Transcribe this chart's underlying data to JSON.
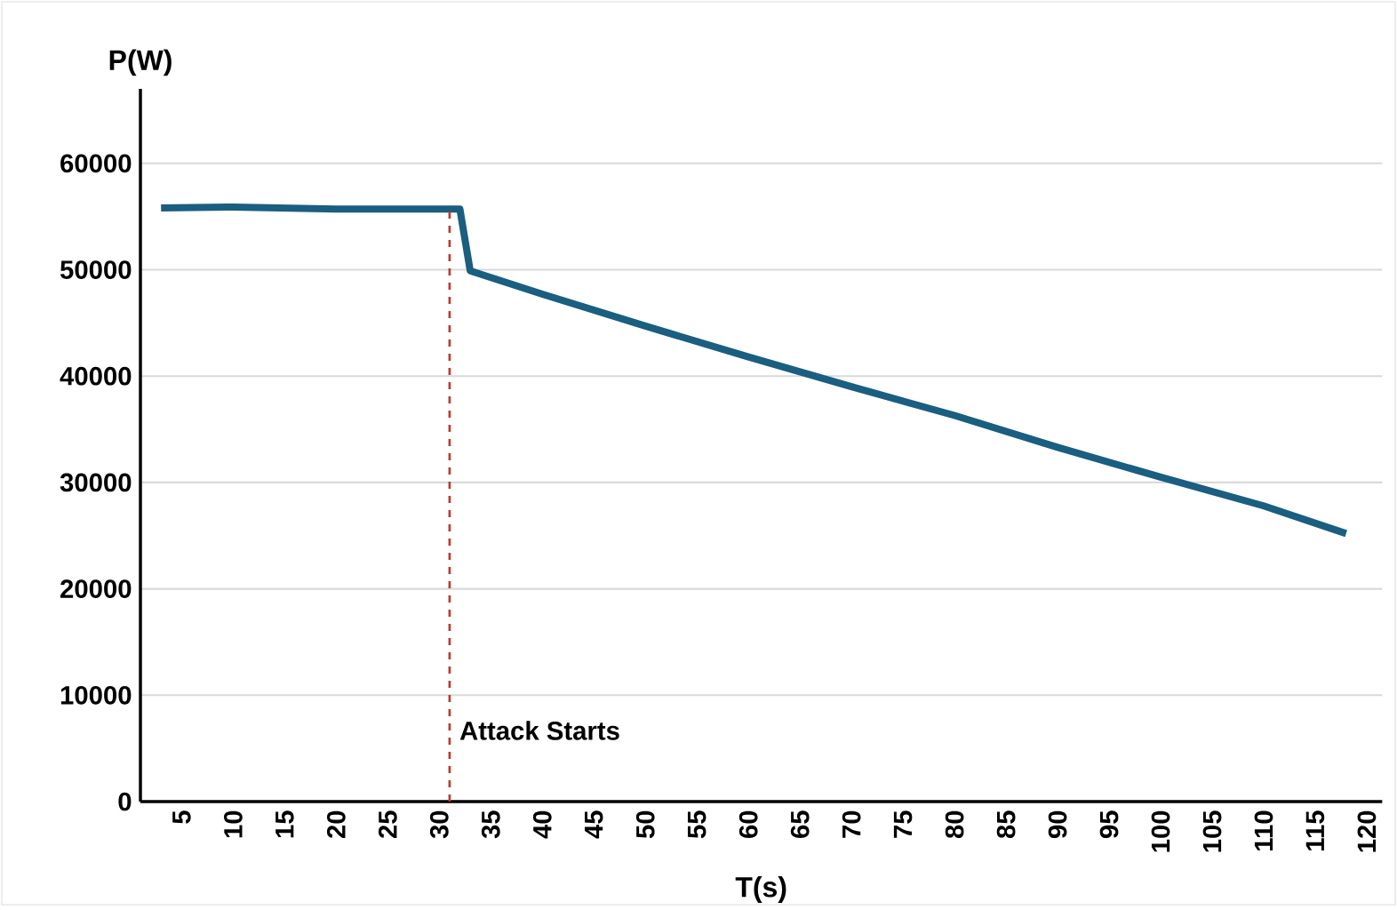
{
  "chart_data": {
    "type": "line",
    "xlabel": "T(s)",
    "ylabel": "P(W)",
    "series": [
      {
        "color": "#1a5e80",
        "x": [
          3,
          10,
          20,
          31,
          32,
          33,
          40,
          50,
          60,
          70,
          80,
          90,
          100,
          110,
          118
        ],
        "values": [
          55800,
          55900,
          55700,
          55700,
          55700,
          49900,
          47700,
          44700,
          41800,
          39000,
          36300,
          33300,
          30500,
          27800,
          25200
        ]
      }
    ],
    "xlim": [
      1,
      121.5
    ],
    "xticks": [
      5,
      10,
      15,
      20,
      25,
      30,
      35,
      40,
      45,
      50,
      55,
      60,
      65,
      70,
      75,
      80,
      85,
      90,
      95,
      100,
      105,
      110,
      115,
      120
    ],
    "ylim": [
      0,
      67000
    ],
    "yticks": [
      0,
      10000,
      20000,
      30000,
      40000,
      50000,
      60000
    ],
    "grid": "y",
    "marker": "none",
    "line_style": "solid",
    "ref_lines": [
      {
        "axis": "x",
        "value": 31,
        "label": "Attack Starts",
        "color": "#c0392b",
        "line_style": "dashed"
      }
    ]
  }
}
